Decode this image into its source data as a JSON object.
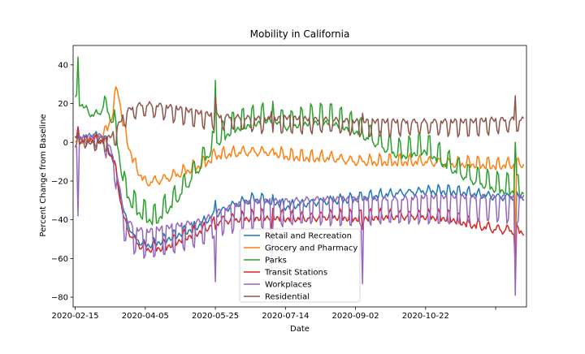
{
  "chart_data": {
    "type": "line",
    "title": "Mobility in California",
    "xlabel": "Date",
    "ylabel": "Percent Change from Baseline",
    "x_range": [
      "2020-02-15",
      "2020-12-31"
    ],
    "ylim": [
      -85,
      50
    ],
    "x_ticks": [
      "2020-02-15",
      "2020-04-05",
      "2020-05-25",
      "2020-07-14",
      "2020-09-02",
      "2020-10-22",
      ""
    ],
    "x_tick_dates": [
      "2020-02-15",
      "2020-04-05",
      "2020-05-25",
      "2020-07-14",
      "2020-09-02",
      "2020-10-22",
      "2020-12-11"
    ],
    "y_ticks": [
      "40",
      "20",
      "0",
      "−20",
      "−40",
      "−60",
      "−80"
    ],
    "y_tick_values": [
      40,
      20,
      0,
      -20,
      -40,
      -60,
      -80
    ],
    "grid": false,
    "legend_position": "lower center",
    "series": [
      {
        "name": "Retail and Recreation",
        "color": "#1f77b4",
        "base": [
          [
            "2020-02-15",
            1
          ],
          [
            "2020-02-29",
            3
          ],
          [
            "2020-03-07",
            2
          ],
          [
            "2020-03-14",
            -12
          ],
          [
            "2020-03-21",
            -38
          ],
          [
            "2020-03-28",
            -50
          ],
          [
            "2020-04-05",
            -54
          ],
          [
            "2020-04-12",
            -53
          ],
          [
            "2020-04-26",
            -49
          ],
          [
            "2020-05-10",
            -45
          ],
          [
            "2020-05-25",
            -38
          ],
          [
            "2020-06-07",
            -33
          ],
          [
            "2020-06-21",
            -30
          ],
          [
            "2020-07-05",
            -31
          ],
          [
            "2020-07-14",
            -34
          ],
          [
            "2020-08-02",
            -32
          ],
          [
            "2020-08-16",
            -31
          ],
          [
            "2020-09-02",
            -30
          ],
          [
            "2020-09-20",
            -28
          ],
          [
            "2020-10-04",
            -27
          ],
          [
            "2020-10-22",
            -26
          ],
          [
            "2020-11-08",
            -26
          ],
          [
            "2020-11-22",
            -27
          ],
          [
            "2020-12-11",
            -29
          ],
          [
            "2020-12-31",
            -29
          ]
        ],
        "weekly": 3
      },
      {
        "name": "Grocery and Pharmacy",
        "color": "#ff7f0e",
        "base": [
          [
            "2020-02-15",
            0
          ],
          [
            "2020-02-29",
            1
          ],
          [
            "2020-03-07",
            4
          ],
          [
            "2020-03-12",
            12
          ],
          [
            "2020-03-16",
            28
          ],
          [
            "2020-03-21",
            5
          ],
          [
            "2020-03-28",
            -12
          ],
          [
            "2020-04-05",
            -22
          ],
          [
            "2020-04-19",
            -20
          ],
          [
            "2020-05-03",
            -16
          ],
          [
            "2020-05-17",
            -12
          ],
          [
            "2020-05-25",
            -8
          ],
          [
            "2020-06-14",
            -6
          ],
          [
            "2020-07-05",
            -6
          ],
          [
            "2020-07-14",
            -8
          ],
          [
            "2020-08-02",
            -9
          ],
          [
            "2020-08-16",
            -9
          ],
          [
            "2020-09-02",
            -11
          ],
          [
            "2020-09-20",
            -11
          ],
          [
            "2020-10-04",
            -11
          ],
          [
            "2020-10-22",
            -11
          ],
          [
            "2020-11-08",
            -12
          ],
          [
            "2020-11-22",
            -12
          ],
          [
            "2020-12-11",
            -13
          ],
          [
            "2020-12-31",
            -12
          ]
        ],
        "weekly": 4
      },
      {
        "name": "Parks",
        "color": "#2ca02c",
        "base": [
          [
            "2020-02-15",
            22
          ],
          [
            "2020-02-29",
            12
          ],
          [
            "2020-03-07",
            18
          ],
          [
            "2020-03-14",
            8
          ],
          [
            "2020-03-21",
            -25
          ],
          [
            "2020-03-28",
            -35
          ],
          [
            "2020-04-05",
            -40
          ],
          [
            "2020-04-12",
            -42
          ],
          [
            "2020-04-26",
            -32
          ],
          [
            "2020-05-10",
            -18
          ],
          [
            "2020-05-25",
            -2
          ],
          [
            "2020-06-07",
            6
          ],
          [
            "2020-06-21",
            9
          ],
          [
            "2020-07-05",
            12
          ],
          [
            "2020-07-14",
            7
          ],
          [
            "2020-08-02",
            10
          ],
          [
            "2020-08-16",
            10
          ],
          [
            "2020-09-02",
            5
          ],
          [
            "2020-09-20",
            -3
          ],
          [
            "2020-10-04",
            -8
          ],
          [
            "2020-10-22",
            -5
          ],
          [
            "2020-11-08",
            -14
          ],
          [
            "2020-11-22",
            -20
          ],
          [
            "2020-12-11",
            -25
          ],
          [
            "2020-12-31",
            -27
          ]
        ],
        "weekly": 9
      },
      {
        "name": "Transit Stations",
        "color": "#d62728",
        "base": [
          [
            "2020-02-15",
            1
          ],
          [
            "2020-02-29",
            1
          ],
          [
            "2020-03-07",
            0
          ],
          [
            "2020-03-14",
            -12
          ],
          [
            "2020-03-21",
            -42
          ],
          [
            "2020-03-28",
            -52
          ],
          [
            "2020-04-05",
            -56
          ],
          [
            "2020-04-19",
            -55
          ],
          [
            "2020-05-03",
            -50
          ],
          [
            "2020-05-17",
            -46
          ],
          [
            "2020-05-25",
            -42
          ],
          [
            "2020-06-14",
            -40
          ],
          [
            "2020-07-05",
            -39
          ],
          [
            "2020-07-14",
            -40
          ],
          [
            "2020-08-02",
            -40
          ],
          [
            "2020-08-16",
            -39
          ],
          [
            "2020-09-02",
            -40
          ],
          [
            "2020-09-20",
            -39
          ],
          [
            "2020-10-04",
            -39
          ],
          [
            "2020-10-22",
            -39
          ],
          [
            "2020-11-08",
            -40
          ],
          [
            "2020-11-22",
            -43
          ],
          [
            "2020-12-11",
            -46
          ],
          [
            "2020-12-31",
            -47
          ]
        ],
        "weekly": 4
      },
      {
        "name": "Workplaces",
        "color": "#9467bd",
        "base": [
          [
            "2020-02-15",
            2
          ],
          [
            "2020-02-29",
            4
          ],
          [
            "2020-03-07",
            3
          ],
          [
            "2020-03-14",
            -8
          ],
          [
            "2020-03-21",
            -38
          ],
          [
            "2020-03-28",
            -44
          ],
          [
            "2020-04-05",
            -46
          ],
          [
            "2020-04-19",
            -44
          ],
          [
            "2020-05-03",
            -42
          ],
          [
            "2020-05-17",
            -40
          ],
          [
            "2020-05-25",
            -36
          ],
          [
            "2020-06-14",
            -31
          ],
          [
            "2020-07-05",
            -30
          ],
          [
            "2020-07-14",
            -30
          ],
          [
            "2020-08-02",
            -29
          ],
          [
            "2020-08-16",
            -29
          ],
          [
            "2020-09-02",
            -29
          ],
          [
            "2020-09-20",
            -29
          ],
          [
            "2020-10-04",
            -29
          ],
          [
            "2020-10-22",
            -28
          ],
          [
            "2020-11-08",
            -28
          ],
          [
            "2020-11-22",
            -28
          ],
          [
            "2020-12-11",
            -28
          ],
          [
            "2020-12-31",
            -28
          ]
        ],
        "weekly": -13
      },
      {
        "name": "Residential",
        "color": "#8c564b",
        "base": [
          [
            "2020-02-15",
            0
          ],
          [
            "2020-02-29",
            0
          ],
          [
            "2020-03-07",
            1
          ],
          [
            "2020-03-14",
            5
          ],
          [
            "2020-03-21",
            15
          ],
          [
            "2020-03-28",
            19
          ],
          [
            "2020-04-05",
            20
          ],
          [
            "2020-04-19",
            19
          ],
          [
            "2020-05-03",
            17
          ],
          [
            "2020-05-17",
            15
          ],
          [
            "2020-05-25",
            14
          ],
          [
            "2020-06-14",
            13
          ],
          [
            "2020-07-05",
            12
          ],
          [
            "2020-07-14",
            13
          ],
          [
            "2020-08-02",
            12
          ],
          [
            "2020-08-16",
            12
          ],
          [
            "2020-09-02",
            11
          ],
          [
            "2020-09-20",
            11
          ],
          [
            "2020-10-04",
            11
          ],
          [
            "2020-10-22",
            11
          ],
          [
            "2020-11-08",
            11
          ],
          [
            "2020-11-22",
            11
          ],
          [
            "2020-12-11",
            12
          ],
          [
            "2020-12-31",
            12
          ]
        ],
        "weekly": -7
      }
    ],
    "events": [
      {
        "date": "2020-02-17",
        "values": {
          "Retail and Recreation": 8,
          "Grocery and Pharmacy": 5,
          "Parks": 44,
          "Transit Stations": 8,
          "Workplaces": -38,
          "Residential": 5
        }
      },
      {
        "date": "2020-05-25",
        "values": {
          "Retail and Recreation": -30,
          "Grocery and Pharmacy": -6,
          "Parks": 32,
          "Transit Stations": -45,
          "Workplaces": -72,
          "Residential": 24
        }
      },
      {
        "date": "2020-07-04",
        "values": {
          "Retail and Recreation": -32,
          "Grocery and Pharmacy": -4,
          "Parks": 10,
          "Transit Stations": -45,
          "Workplaces": -68,
          "Residential": 16
        }
      },
      {
        "date": "2020-09-07",
        "values": {
          "Retail and Recreation": -30,
          "Grocery and Pharmacy": -10,
          "Parks": 5,
          "Transit Stations": -45,
          "Workplaces": -73,
          "Residential": 15
        }
      },
      {
        "date": "2020-12-25",
        "values": {
          "Retail and Recreation": -60,
          "Grocery and Pharmacy": -55,
          "Parks": 0,
          "Transit Stations": -63,
          "Workplaces": -79,
          "Residential": 24
        }
      }
    ]
  }
}
